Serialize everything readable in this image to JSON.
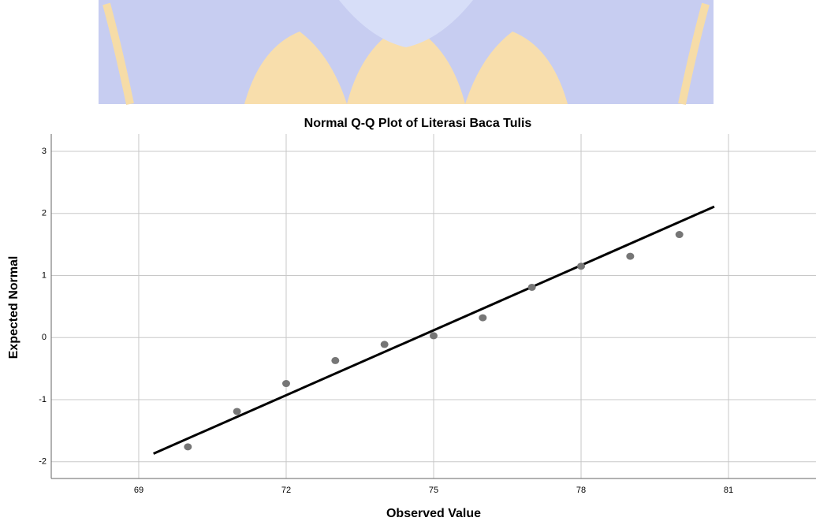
{
  "chart_data": {
    "type": "scatter",
    "title": "Normal Q-Q Plot of Literasi Baca Tulis",
    "x_label": "Observed Value",
    "y_label": "Expected Normal",
    "x": [
      70,
      71,
      72,
      73,
      74,
      75,
      76,
      77,
      78,
      79,
      80
    ],
    "values": [
      -1.76,
      -1.19,
      -0.74,
      -0.37,
      -0.11,
      0.03,
      0.32,
      0.81,
      1.15,
      1.31,
      1.66
    ],
    "color": "#767676",
    "reference_line": {
      "x": [
        69.3,
        80.71
      ],
      "y": [
        -1.87,
        2.11
      ],
      "color": "#000000"
    },
    "xlim": [
      67.22,
      82.78
    ],
    "ylim": [
      -2.27,
      3.28
    ],
    "xticks": [
      69,
      72,
      75,
      78,
      81
    ],
    "yticks": [
      -2,
      -1,
      0,
      1,
      2,
      3
    ],
    "grid": true
  }
}
